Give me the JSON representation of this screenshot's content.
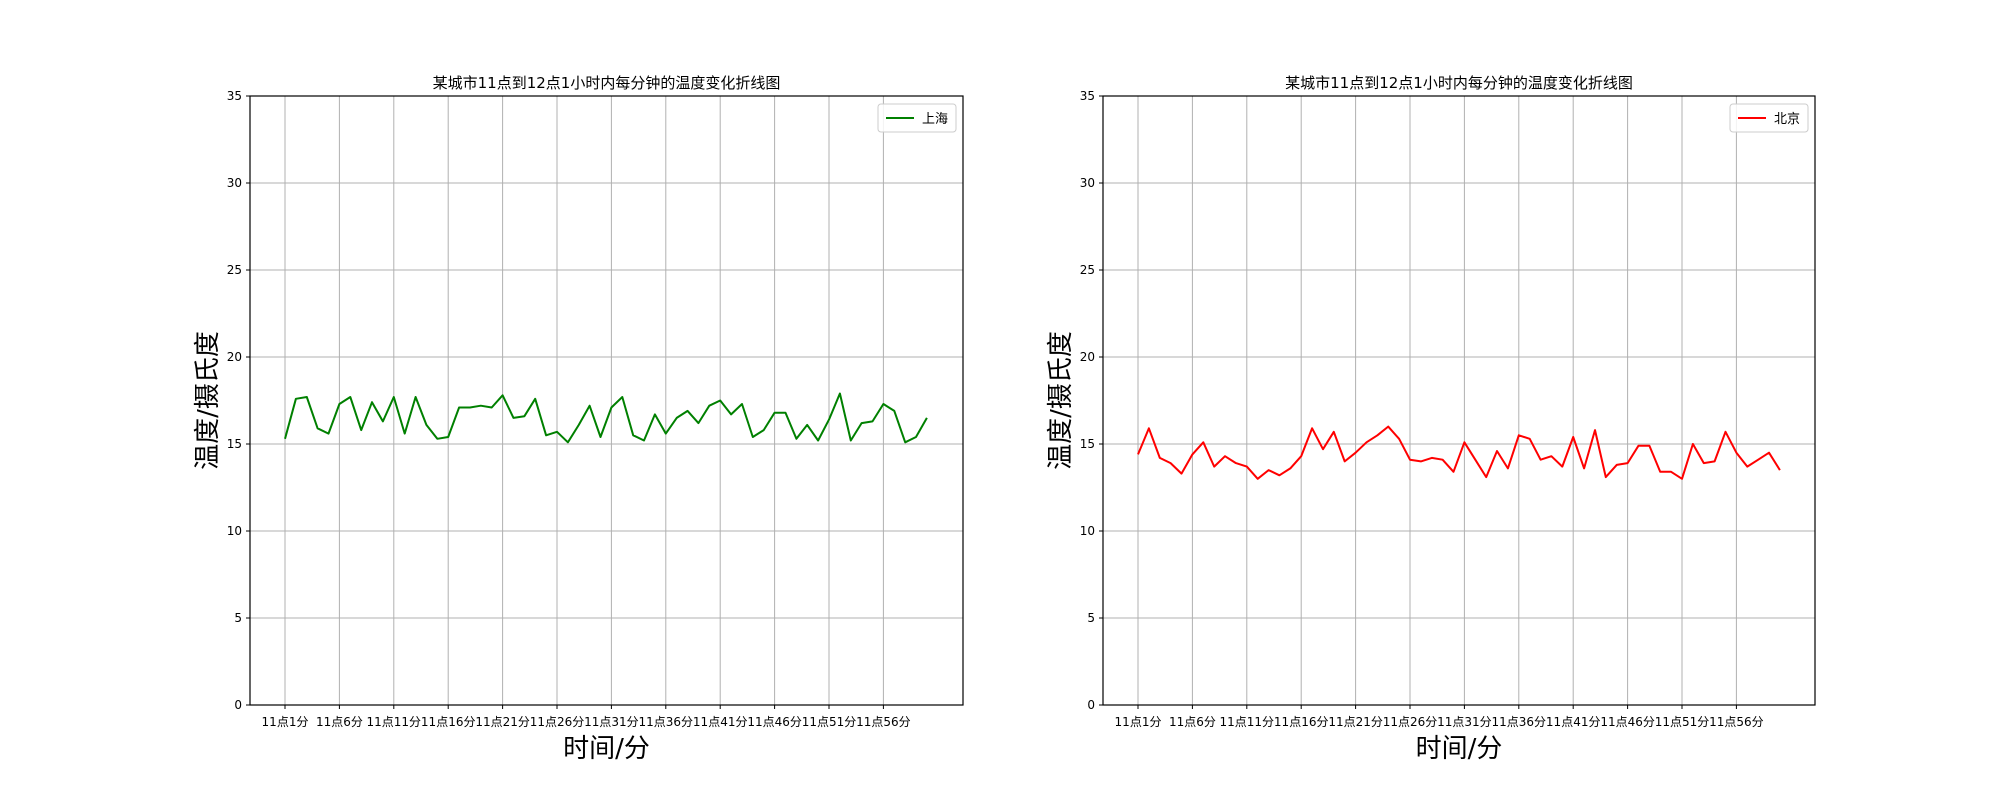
{
  "chart_data": [
    {
      "type": "line",
      "title": "某城市11点到12点1小时内每分钟的温度变化折线图",
      "xlabel": "时间/分",
      "ylabel": "温度/摄氏度",
      "ylim": [
        0,
        35
      ],
      "yticks": [
        0,
        5,
        10,
        15,
        20,
        25,
        30,
        35
      ],
      "xtick_labels": [
        "11点1分",
        "11点6分",
        "11点11分",
        "11点16分",
        "11点21分",
        "11点26分",
        "11点31分",
        "11点36分",
        "11点41分",
        "11点46分",
        "11点51分",
        "11点56分"
      ],
      "grid": true,
      "legend_position": "top-right",
      "series": [
        {
          "name": "上海",
          "color": "#008000",
          "values": [
            15.3,
            17.6,
            17.7,
            15.9,
            15.6,
            17.3,
            17.7,
            15.8,
            17.4,
            16.3,
            17.7,
            15.6,
            17.7,
            16.1,
            15.3,
            15.4,
            17.1,
            17.1,
            17.2,
            17.1,
            17.8,
            16.5,
            16.6,
            17.6,
            15.5,
            15.7,
            15.1,
            16.1,
            17.2,
            15.4,
            17.1,
            17.7,
            15.5,
            15.2,
            16.7,
            15.6,
            16.5,
            16.9,
            16.2,
            17.2,
            17.5,
            16.7,
            17.3,
            15.4,
            15.8,
            16.8,
            16.8,
            15.3,
            16.1,
            15.2,
            16.4,
            17.9,
            15.2,
            16.2,
            16.3,
            17.3,
            16.9,
            15.1,
            15.4,
            16.5
          ]
        }
      ]
    },
    {
      "type": "line",
      "title": "某城市11点到12点1小时内每分钟的温度变化折线图",
      "xlabel": "时间/分",
      "ylabel": "温度/摄氏度",
      "ylim": [
        0,
        35
      ],
      "yticks": [
        0,
        5,
        10,
        15,
        20,
        25,
        30,
        35
      ],
      "xtick_labels": [
        "11点1分",
        "11点6分",
        "11点11分",
        "11点16分",
        "11点21分",
        "11点26分",
        "11点31分",
        "11点36分",
        "11点41分",
        "11点46分",
        "11点51分",
        "11点56分"
      ],
      "grid": true,
      "legend_position": "top-right",
      "series": [
        {
          "name": "北京",
          "color": "#ff0000",
          "values": [
            14.4,
            15.9,
            14.2,
            13.9,
            13.3,
            14.4,
            15.1,
            13.7,
            14.3,
            13.9,
            13.7,
            13.0,
            13.5,
            13.2,
            13.6,
            14.3,
            15.9,
            14.7,
            15.7,
            14.0,
            14.5,
            15.1,
            15.5,
            16.0,
            15.3,
            14.1,
            14.0,
            14.2,
            14.1,
            13.4,
            15.1,
            14.1,
            13.1,
            14.6,
            13.6,
            15.5,
            15.3,
            14.1,
            14.3,
            13.7,
            15.4,
            13.6,
            15.8,
            13.1,
            13.8,
            13.9,
            14.9,
            14.9,
            13.4,
            13.4,
            13.0,
            15.0,
            13.9,
            14.0,
            15.7,
            14.5,
            13.7,
            14.1,
            14.5,
            13.5
          ]
        }
      ]
    }
  ]
}
